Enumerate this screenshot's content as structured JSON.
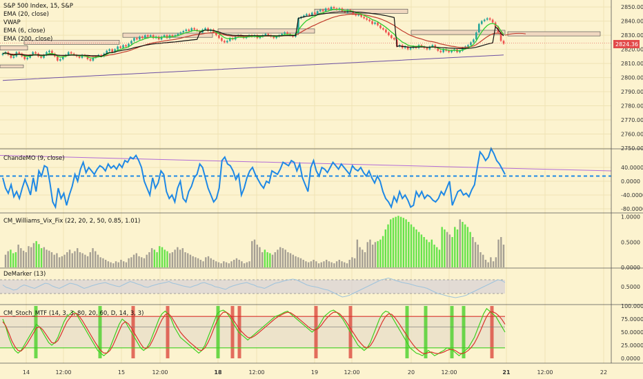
{
  "colors": {
    "bg": "#fcf3cf",
    "grid": "#efe3b4",
    "up": "#26a69a",
    "down": "#ef5350",
    "ema20": "#2ecc2e",
    "vwap": "#111111",
    "ema6": "#c0392b",
    "ema200": "#6c4fa3",
    "cmo": "#1e88e5",
    "trend": "#b26bd6",
    "vixGreen": "#66e34a",
    "vixGray": "#a59f93",
    "dem": "#9ec3dc",
    "demBand": "#d7d0d6",
    "stochGreen": "#3ecf1f",
    "stochRed": "#d9332b",
    "zone": "#f0d8c0"
  },
  "chart_data": [
    {
      "type": "candlestick",
      "legend": [
        "S&P 500 Index, 15, S&P",
        "EMA (20, close)",
        "VWAP",
        "EMA (6, close)",
        "EMA (200, close)"
      ],
      "y_ticks": [
        "2850.00",
        "2840.00",
        "2830.00",
        "2820.00",
        "2810.00",
        "2800.00",
        "2790.00",
        "2780.00",
        "2770.00",
        "2760.00",
        "2750.00"
      ],
      "ylim": [
        2750,
        2853
      ],
      "last_price": "2824.36",
      "close": [
        2817,
        2818,
        2816,
        2814,
        2815,
        2818,
        2817,
        2815,
        2813,
        2814,
        2816,
        2818,
        2817,
        2815,
        2814,
        2816,
        2818,
        2819,
        2817,
        2815,
        2812,
        2813,
        2815,
        2816,
        2818,
        2817,
        2816,
        2815,
        2814,
        2816,
        2815,
        2813,
        2812,
        2814,
        2815,
        2816,
        2815,
        2817,
        2819,
        2820,
        2818,
        2820,
        2822,
        2821,
        2823,
        2822,
        2824,
        2826,
        2828,
        2827,
        2829,
        2828,
        2830,
        2829,
        2830,
        2828,
        2829,
        2827,
        2829,
        2830,
        2828,
        2830,
        2829,
        2830,
        2831,
        2832,
        2833,
        2834,
        2833,
        2835,
        2834,
        2833,
        2832,
        2834,
        2835,
        2833,
        2834,
        2832,
        2830,
        2828,
        2826,
        2825,
        2826,
        2828,
        2827,
        2829,
        2830,
        2829,
        2828,
        2829,
        2830,
        2829,
        2830,
        2828,
        2829,
        2830,
        2831,
        2830,
        2829,
        2828,
        2829,
        2830,
        2831,
        2832,
        2831,
        2830,
        2829,
        2831,
        2842,
        2843,
        2844,
        2845,
        2844,
        2846,
        2845,
        2847,
        2848,
        2847,
        2849,
        2848,
        2850,
        2849,
        2848,
        2849,
        2847,
        2846,
        2848,
        2847,
        2845,
        2844,
        2845,
        2843,
        2842,
        2841,
        2840,
        2838,
        2839,
        2837,
        2835,
        2834,
        2832,
        2830,
        2828,
        2827,
        2822,
        2823,
        2821,
        2822,
        2820,
        2821,
        2822,
        2821,
        2823,
        2822,
        2821,
        2820,
        2822,
        2823,
        2821,
        2819,
        2818,
        2820,
        2819,
        2818,
        2819,
        2820,
        2818,
        2819,
        2821,
        2822,
        2823,
        2825,
        2827,
        2832,
        2838,
        2840,
        2841,
        2842,
        2841,
        2839,
        2836,
        2832,
        2826,
        2824
      ]
    },
    {
      "type": "line",
      "legend": "ChandeMO (9, close)",
      "y_ticks": [
        "40.0000",
        "0.0000",
        "-40.0000",
        "-80.0000"
      ],
      "ylim": [
        -90,
        90
      ],
      "zero_line": 15,
      "trend_start": 75,
      "trend_end": 30,
      "values": [
        10,
        -20,
        -35,
        -10,
        -45,
        -30,
        -50,
        -20,
        5,
        -15,
        -40,
        10,
        -30,
        30,
        15,
        45,
        40,
        -5,
        -60,
        -75,
        -20,
        -50,
        -35,
        -70,
        -40,
        -15,
        20,
        0,
        35,
        55,
        25,
        40,
        30,
        20,
        35,
        45,
        40,
        30,
        50,
        38,
        45,
        35,
        50,
        40,
        60,
        55,
        70,
        65,
        75,
        60,
        40,
        0,
        -20,
        -40,
        10,
        -20,
        -5,
        30,
        20,
        -30,
        -50,
        -40,
        -60,
        -20,
        0,
        -50,
        -60,
        -30,
        -15,
        10,
        20,
        50,
        40,
        10,
        -20,
        -40,
        -60,
        -50,
        -20,
        60,
        70,
        50,
        45,
        30,
        5,
        20,
        -40,
        -20,
        10,
        30,
        40,
        20,
        5,
        -10,
        -20,
        0,
        -5,
        30,
        25,
        20,
        35,
        55,
        50,
        45,
        60,
        55,
        30,
        50,
        10,
        -10,
        -30,
        40,
        60,
        30,
        15,
        40,
        35,
        25,
        40,
        55,
        45,
        35,
        50,
        40,
        30,
        20,
        45,
        35,
        30,
        40,
        25,
        15,
        30,
        10,
        -5,
        15,
        0,
        -30,
        -50,
        -60,
        -75,
        -45,
        -60,
        -30,
        -50,
        -40,
        -55,
        -75,
        -70,
        -30,
        -45,
        -30,
        -50,
        -40,
        -45,
        -55,
        -60,
        -50,
        -30,
        -40,
        -20,
        0,
        -70,
        -50,
        -30,
        -25,
        -40,
        -35,
        -45,
        -25,
        -10,
        40,
        85,
        75,
        60,
        70,
        95,
        80,
        60,
        50,
        35,
        20
      ]
    },
    {
      "type": "bar",
      "legend": "CM_Williams_Vix_Fix (22, 20, 2, 50, 0.85, 1.01)",
      "y_ticks": [
        "1.0000",
        "0.5000",
        "0.0000"
      ],
      "ylim": [
        0,
        1.05
      ],
      "values": [
        0.25,
        0.32,
        0.35,
        0.28,
        0.3,
        0.45,
        0.38,
        0.33,
        0.3,
        0.42,
        0.4,
        0.48,
        0.52,
        0.46,
        0.38,
        0.4,
        0.35,
        0.33,
        0.3,
        0.25,
        0.28,
        0.2,
        0.22,
        0.25,
        0.3,
        0.35,
        0.28,
        0.32,
        0.38,
        0.3,
        0.28,
        0.25,
        0.22,
        0.3,
        0.38,
        0.32,
        0.25,
        0.2,
        0.18,
        0.15,
        0.12,
        0.1,
        0.08,
        0.12,
        0.1,
        0.15,
        0.12,
        0.1,
        0.18,
        0.2,
        0.25,
        0.28,
        0.22,
        0.2,
        0.18,
        0.25,
        0.3,
        0.38,
        0.35,
        0.3,
        0.42,
        0.4,
        0.35,
        0.32,
        0.28,
        0.3,
        0.35,
        0.4,
        0.35,
        0.38,
        0.3,
        0.28,
        0.25,
        0.22,
        0.2,
        0.18,
        0.15,
        0.12,
        0.2,
        0.22,
        0.18,
        0.15,
        0.12,
        0.1,
        0.08,
        0.12,
        0.1,
        0.08,
        0.12,
        0.15,
        0.18,
        0.15,
        0.12,
        0.08,
        0.1,
        0.12,
        0.52,
        0.55,
        0.45,
        0.4,
        0.3,
        0.35,
        0.3,
        0.28,
        0.25,
        0.3,
        0.35,
        0.4,
        0.38,
        0.35,
        0.3,
        0.28,
        0.25,
        0.22,
        0.2,
        0.18,
        0.15,
        0.12,
        0.1,
        0.12,
        0.15,
        0.12,
        0.08,
        0.1,
        0.12,
        0.15,
        0.12,
        0.1,
        0.08,
        0.12,
        0.15,
        0.12,
        0.1,
        0.08,
        0.15,
        0.2,
        0.18,
        0.55,
        0.4,
        0.35,
        0.3,
        0.5,
        0.55,
        0.45,
        0.5,
        0.52,
        0.55,
        0.62,
        0.75,
        0.85,
        0.95,
        0.98,
        1.0,
        1.02,
        1.0,
        0.98,
        0.95,
        0.9,
        0.85,
        0.8,
        0.75,
        0.7,
        0.65,
        0.6,
        0.55,
        0.5,
        0.55,
        0.45,
        0.4,
        0.35,
        0.8,
        0.75,
        0.7,
        0.65,
        0.6,
        0.8,
        0.75,
        0.95,
        0.9,
        0.85,
        0.8,
        0.7,
        0.6,
        0.5,
        0.45,
        0.3,
        0.25,
        0.15,
        0.1,
        0.2,
        0.12,
        0.2,
        0.55,
        0.6,
        0.45
      ],
      "green_ranges": [
        [
          2,
          4
        ],
        [
          12,
          14
        ],
        [
          58,
          63
        ],
        [
          101,
          103
        ],
        [
          145,
          171
        ],
        [
          174,
          176
        ],
        [
          178,
          181
        ]
      ]
    },
    {
      "type": "line",
      "legend": "DeMarker (13)",
      "y_ticks": [
        "0.5000"
      ],
      "ylim": [
        0,
        1
      ],
      "band": [
        0.3,
        0.7
      ],
      "values": [
        0.55,
        0.48,
        0.45,
        0.4,
        0.42,
        0.5,
        0.55,
        0.52,
        0.48,
        0.45,
        0.5,
        0.55,
        0.6,
        0.58,
        0.52,
        0.48,
        0.45,
        0.5,
        0.55,
        0.6,
        0.58,
        0.55,
        0.5,
        0.45,
        0.48,
        0.52,
        0.55,
        0.58,
        0.6,
        0.62,
        0.58,
        0.55,
        0.52,
        0.5,
        0.55,
        0.6,
        0.65,
        0.62,
        0.58,
        0.55,
        0.5,
        0.48,
        0.52,
        0.55,
        0.58,
        0.6,
        0.62,
        0.65,
        0.6,
        0.58,
        0.55,
        0.52,
        0.5,
        0.48,
        0.52,
        0.55,
        0.6,
        0.62,
        0.58,
        0.55,
        0.5,
        0.48,
        0.45,
        0.42,
        0.48,
        0.52,
        0.55,
        0.58,
        0.6,
        0.62,
        0.58,
        0.55,
        0.5,
        0.48,
        0.45,
        0.5,
        0.55,
        0.6,
        0.62,
        0.65,
        0.68,
        0.7,
        0.72,
        0.7,
        0.65,
        0.6,
        0.55,
        0.52,
        0.5,
        0.48,
        0.45,
        0.42,
        0.4,
        0.35,
        0.3,
        0.25,
        0.2,
        0.22,
        0.25,
        0.3,
        0.35,
        0.4,
        0.45,
        0.5,
        0.55,
        0.6,
        0.65,
        0.7,
        0.72,
        0.75,
        0.72,
        0.68,
        0.65,
        0.62,
        0.6,
        0.58,
        0.55,
        0.52,
        0.5,
        0.48,
        0.45,
        0.4,
        0.35,
        0.3,
        0.28,
        0.25,
        0.22,
        0.2,
        0.18,
        0.2,
        0.22,
        0.25,
        0.3,
        0.35,
        0.4,
        0.45,
        0.5,
        0.55,
        0.6,
        0.65,
        0.7,
        0.68,
        0.62
      ]
    },
    {
      "type": "line",
      "legend": "CM_Stoch_MTF (14, 3, 3, 80, 20, 60, D, 14, 3, 3)",
      "y_ticks": [
        "100.0000",
        "75.0000",
        "50.0000",
        "25.0000",
        "0.0000"
      ],
      "ylim": [
        0,
        100
      ],
      "lines": [
        80,
        60,
        20
      ],
      "k": [
        75,
        60,
        40,
        25,
        15,
        10,
        15,
        25,
        35,
        45,
        55,
        65,
        60,
        50,
        40,
        30,
        25,
        30,
        40,
        55,
        70,
        80,
        85,
        90,
        85,
        75,
        65,
        55,
        45,
        35,
        25,
        15,
        10,
        5,
        10,
        20,
        35,
        50,
        65,
        75,
        70,
        60,
        50,
        40,
        30,
        20,
        15,
        20,
        30,
        45,
        60,
        75,
        85,
        90,
        85,
        75,
        60,
        50,
        40,
        35,
        30,
        25,
        20,
        15,
        10,
        15,
        25,
        40,
        55,
        70,
        85,
        90,
        92,
        88,
        80,
        70,
        60,
        50,
        45,
        40,
        35,
        40,
        45,
        50,
        55,
        60,
        65,
        70,
        75,
        80,
        82,
        85,
        88,
        90,
        85,
        80,
        75,
        70,
        65,
        60,
        55,
        50,
        55,
        60,
        70,
        80,
        85,
        90,
        92,
        88,
        82,
        75,
        65,
        55,
        45,
        35,
        25,
        20,
        15,
        20,
        30,
        45,
        60,
        75,
        85,
        90,
        88,
        80,
        70,
        60,
        50,
        40,
        30,
        20,
        15,
        10,
        8,
        5,
        10,
        15,
        10,
        5,
        8,
        12,
        15,
        20,
        18,
        15,
        10,
        5,
        10,
        15,
        20,
        30,
        40,
        55,
        70,
        85,
        95,
        90,
        85,
        80,
        70,
        60,
        50
      ],
      "d": [
        70,
        62,
        48,
        33,
        22,
        15,
        14,
        20,
        28,
        38,
        48,
        58,
        60,
        55,
        47,
        38,
        30,
        29,
        34,
        45,
        58,
        70,
        78,
        85,
        86,
        80,
        72,
        62,
        52,
        42,
        32,
        23,
        15,
        10,
        10,
        15,
        25,
        38,
        52,
        65,
        70,
        66,
        58,
        48,
        38,
        28,
        20,
        19,
        24,
        35,
        48,
        62,
        74,
        83,
        86,
        80,
        70,
        60,
        50,
        43,
        37,
        31,
        26,
        21,
        16,
        15,
        20,
        30,
        43,
        58,
        72,
        82,
        88,
        88,
        84,
        76,
        67,
        58,
        51,
        45,
        40,
        39,
        42,
        46,
        51,
        56,
        61,
        66,
        71,
        76,
        80,
        83,
        86,
        88,
        87,
        83,
        79,
        74,
        69,
        64,
        59,
        55,
        54,
        57,
        63,
        71,
        78,
        84,
        88,
        88,
        85,
        79,
        71,
        62,
        53,
        44,
        35,
        28,
        22,
        20,
        24,
        33,
        45,
        58,
        70,
        80,
        85,
        84,
        78,
        70,
        61,
        52,
        43,
        34,
        26,
        19,
        14,
        10,
        9,
        11,
        12,
        10,
        9,
        10,
        12,
        15,
        17,
        17,
        14,
        10,
        9,
        11,
        15,
        21,
        29,
        40,
        53,
        67,
        80,
        88,
        89,
        86,
        81,
        74,
        65
      ]
    }
  ],
  "x_labels": [
    "14",
    "12:00",
    "15",
    "12:00",
    "18",
    "12:00",
    "19",
    "12:00",
    "20",
    "12:00",
    "21",
    "12:00",
    "22"
  ]
}
